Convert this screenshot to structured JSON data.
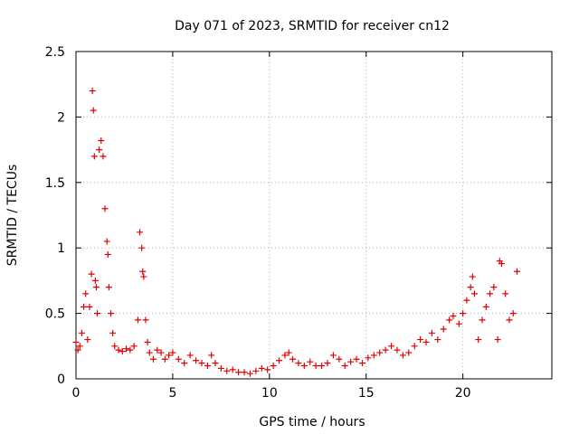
{
  "chart_data": {
    "type": "scatter",
    "title": "Day 071 of 2023, SRMTID for receiver cn12",
    "xlabel": "GPS time / hours",
    "ylabel": "SRMTID / TECUs",
    "xlim": [
      0,
      24.6
    ],
    "ylim": [
      0,
      2.5
    ],
    "xticks": [
      0,
      5,
      10,
      15,
      20
    ],
    "xtick_labels": [
      "0",
      "5",
      "10",
      "15",
      "20"
    ],
    "yticks": [
      0,
      0.5,
      1,
      1.5,
      2,
      2.5
    ],
    "ytick_labels": [
      "0",
      "0.5",
      "1",
      "1.5",
      "2",
      "2.5"
    ],
    "grid": true,
    "marker": "+",
    "color": "#e00000",
    "series": [
      {
        "name": "cn12",
        "x": [
          0.0,
          0.1,
          0.2,
          0.3,
          0.4,
          0.5,
          0.6,
          0.7,
          0.8,
          0.85,
          0.9,
          0.95,
          1.0,
          1.05,
          1.1,
          1.2,
          1.3,
          1.4,
          1.5,
          1.6,
          1.65,
          1.7,
          1.8,
          1.9,
          2.0,
          2.2,
          2.4,
          2.6,
          2.8,
          3.0,
          3.2,
          3.3,
          3.4,
          3.45,
          3.5,
          3.6,
          3.7,
          3.8,
          4.0,
          4.2,
          4.4,
          4.6,
          4.8,
          5.0,
          5.3,
          5.6,
          5.9,
          6.2,
          6.5,
          6.8,
          7.0,
          7.2,
          7.5,
          7.8,
          8.1,
          8.4,
          8.7,
          9.0,
          9.3,
          9.6,
          9.9,
          10.2,
          10.5,
          10.8,
          11.0,
          11.2,
          11.5,
          11.8,
          12.1,
          12.4,
          12.7,
          13.0,
          13.3,
          13.6,
          13.9,
          14.2,
          14.5,
          14.8,
          15.1,
          15.4,
          15.7,
          16.0,
          16.3,
          16.6,
          16.9,
          17.2,
          17.5,
          17.8,
          18.1,
          18.4,
          18.7,
          19.0,
          19.3,
          19.5,
          19.8,
          20.0,
          20.2,
          20.4,
          20.5,
          20.6,
          20.8,
          21.0,
          21.2,
          21.4,
          21.6,
          21.8,
          21.9,
          22.0,
          22.2,
          22.4,
          22.6,
          22.8
        ],
        "y": [
          0.28,
          0.22,
          0.25,
          0.35,
          0.55,
          0.65,
          0.3,
          0.55,
          0.8,
          2.2,
          2.05,
          1.7,
          0.75,
          0.7,
          0.5,
          1.75,
          1.82,
          1.7,
          1.3,
          1.05,
          0.95,
          0.7,
          0.5,
          0.35,
          0.25,
          0.22,
          0.21,
          0.23,
          0.22,
          0.25,
          0.45,
          1.12,
          1.0,
          0.82,
          0.78,
          0.45,
          0.28,
          0.2,
          0.15,
          0.22,
          0.2,
          0.15,
          0.18,
          0.2,
          0.15,
          0.12,
          0.18,
          0.14,
          0.12,
          0.1,
          0.18,
          0.12,
          0.08,
          0.06,
          0.07,
          0.05,
          0.05,
          0.04,
          0.06,
          0.08,
          0.07,
          0.1,
          0.14,
          0.18,
          0.2,
          0.15,
          0.12,
          0.1,
          0.13,
          0.1,
          0.1,
          0.12,
          0.18,
          0.15,
          0.1,
          0.13,
          0.15,
          0.12,
          0.16,
          0.18,
          0.2,
          0.22,
          0.25,
          0.22,
          0.18,
          0.2,
          0.25,
          0.3,
          0.28,
          0.35,
          0.3,
          0.38,
          0.45,
          0.48,
          0.42,
          0.5,
          0.6,
          0.7,
          0.78,
          0.65,
          0.3,
          0.45,
          0.55,
          0.65,
          0.7,
          0.3,
          0.9,
          0.88,
          0.65,
          0.45,
          0.5,
          0.82
        ]
      }
    ]
  }
}
